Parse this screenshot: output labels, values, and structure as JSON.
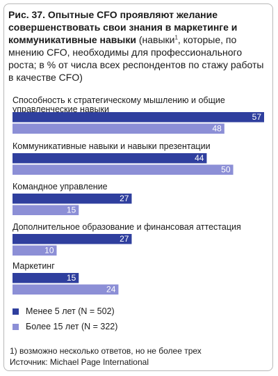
{
  "title": {
    "prefix": "Рис. 37.",
    "bold_text": "Опытные CFO проявляют желание совершенствовать свои знания в маркетинге и коммуникативные навыки",
    "plain_open": "(навыки",
    "sup": "1",
    "plain_rest": ", которые, по мнению CFO, необходимы для профессионального роста; в % от числа всех респондентов по стажу работы в качестве CFO)"
  },
  "colors": {
    "series1": "#2f3f9e",
    "series2": "#8c8fd6"
  },
  "chart_data": {
    "type": "bar",
    "orientation": "horizontal",
    "categories": [
      [
        "Способность к стратегическому мышлению и общие",
        "управленческие навыки"
      ],
      [
        "Коммуникативные навыки и навыки презентации"
      ],
      [
        "Командное управление"
      ],
      [
        "Дополнительное образование и финансовая аттестация"
      ],
      [
        "Маркетинг"
      ]
    ],
    "series": [
      {
        "name": "Менее 5 лет (N = 502)",
        "values": [
          57,
          44,
          27,
          27,
          15
        ]
      },
      {
        "name": "Более 15 лет (N = 322)",
        "values": [
          48,
          50,
          15,
          10,
          24
        ]
      }
    ],
    "xlim": [
      0,
      57
    ],
    "data_labels": true,
    "legend_position": "bottom-left"
  },
  "footnote": {
    "note": "1) возможно несколько ответов, но не более трех",
    "source": "Источник: Michael Page International"
  }
}
